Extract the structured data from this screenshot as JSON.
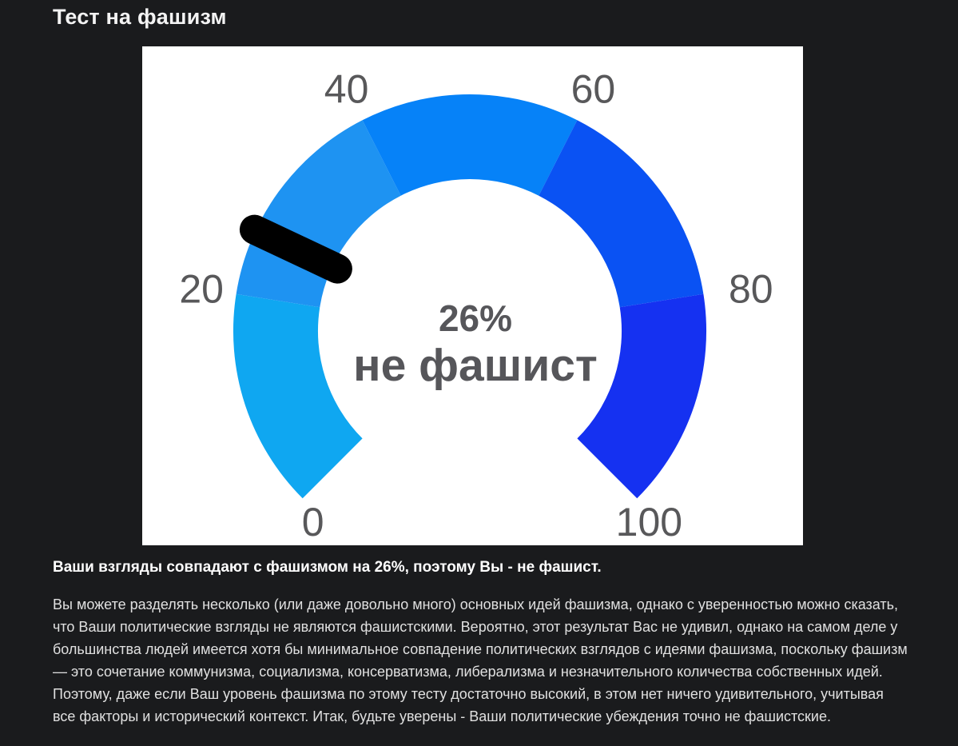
{
  "page": {
    "title": "Тест на фашизм"
  },
  "result": {
    "headline": "Ваши взгляды совпадают с фашизмом на 26%, поэтому Вы - не фашист.",
    "description": "Вы можете разделять несколько (или даже довольно много) основных идей фашизма, однако с уверенностью можно сказать, что Ваши политические взгляды не являются фашистскими. Вероятно, этот результат Вас не удивил, однако на самом деле у большинства людей имеется хотя бы минимальное совпадение политических взглядов с идеями фашизма, поскольку фашизм — это сочетание коммунизма, социализма, консерватизма, либерализма и незначительного количества собственных идей. Поэтому, даже если Ваш уровень фашизма по этому тесту достаточно высокий, в этом нет ничего удивительного, учитывая все факторы и исторический контекст. Итак, будьте уверены - Ваши политические убеждения точно не фашистские."
  },
  "chart_data": {
    "type": "gauge",
    "min": 0,
    "max": 100,
    "value": 26,
    "value_label": "26%",
    "verdict_label": "не фашист",
    "start_angle": 225,
    "end_angle": -45,
    "ticks": [
      0,
      20,
      40,
      60,
      80,
      100
    ],
    "segments": [
      {
        "from": 0,
        "to": 20,
        "color": "#0fa7f1"
      },
      {
        "from": 20,
        "to": 40,
        "color": "#1e93f2"
      },
      {
        "from": 40,
        "to": 60,
        "color": "#0682f8"
      },
      {
        "from": 60,
        "to": 80,
        "color": "#0a52f3"
      },
      {
        "from": 80,
        "to": 100,
        "color": "#1531f1"
      }
    ],
    "needle_color": "#000000",
    "tick_label_color": "#58585a",
    "center_label_color": "#56565a",
    "panel_background": "#ffffff",
    "legend": "none",
    "grid": false
  }
}
